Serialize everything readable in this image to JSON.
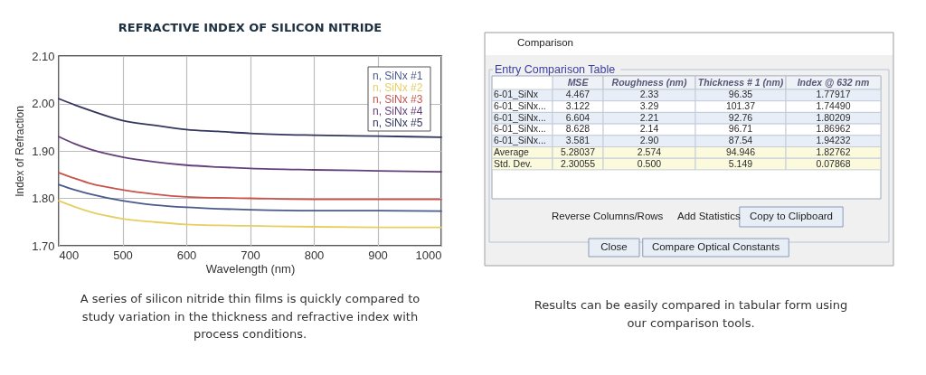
{
  "chart_data": [
    {
      "type": "line",
      "title": "REFRACTIVE INDEX OF SILICON NITRIDE",
      "xlabel": "Wavelength (nm)",
      "ylabel": "Index of Refraction",
      "x": [
        400,
        425,
        450,
        500,
        550,
        600,
        650,
        700,
        800,
        900,
        1000
      ],
      "series": [
        {
          "name": "n, SiNx #1",
          "color": "#4a5a8c",
          "values": [
            1.829,
            1.818,
            1.809,
            1.795,
            1.786,
            1.781,
            1.778,
            1.776,
            1.774,
            1.774,
            1.773
          ]
        },
        {
          "name": "n, SiNx #2",
          "color": "#e6cf62",
          "values": [
            1.795,
            1.782,
            1.771,
            1.757,
            1.75,
            1.745,
            1.743,
            1.742,
            1.74,
            1.739,
            1.739
          ]
        },
        {
          "name": "n, SiNx #3",
          "color": "#c8544c",
          "values": [
            1.854,
            1.842,
            1.831,
            1.818,
            1.809,
            1.803,
            1.801,
            1.8,
            1.798,
            1.798,
            1.798
          ]
        },
        {
          "name": "n, SiNx #4",
          "color": "#64407a",
          "values": [
            1.93,
            1.915,
            1.903,
            1.887,
            1.877,
            1.87,
            1.866,
            1.863,
            1.86,
            1.858,
            1.856
          ]
        },
        {
          "name": "n, SiNx #5",
          "color": "#33375e",
          "values": [
            2.01,
            1.997,
            1.985,
            1.964,
            1.954,
            1.945,
            1.941,
            1.937,
            1.933,
            1.931,
            1.929
          ]
        }
      ],
      "xlim": [
        400,
        1000
      ],
      "ylim": [
        1.7,
        2.1
      ],
      "xticks": [
        400,
        500,
        600,
        700,
        800,
        900,
        1000
      ],
      "yticks": [
        {
          "value": 1.7,
          "label": "1.70"
        },
        {
          "value": 1.8,
          "label": "1.80"
        },
        {
          "value": 1.9,
          "label": "1.90"
        },
        {
          "value": 2.0,
          "label": "2.00"
        },
        {
          "value": 2.1,
          "label": "2.10"
        }
      ],
      "grid": true,
      "legend": "top right",
      "annotations": [
        "A series of silicon nitride thin films is quickly compared to study variation in the thickness and refractive index with process conditions."
      ]
    },
    {
      "type": "heatmap",
      "title": "Comparison",
      "subtitle": "Entry Comparison Table",
      "categories": [
        "MSE",
        "Roughness (nm)",
        "Thickness # 1 (nm)",
        "Index @ 632 nm"
      ],
      "y_categories": [
        "6-01_SiNx",
        "6-01_SiNx...",
        "6-01_SiNx...",
        "6-01_SiNx...",
        "6-01_SiNx...",
        "Average",
        "Std. Dev."
      ],
      "cells": [
        [
          4.467,
          2.33,
          96.35,
          1.77917
        ],
        [
          3.122,
          3.29,
          101.37,
          1.7449
        ],
        [
          6.604,
          2.21,
          92.76,
          1.80209
        ],
        [
          8.628,
          2.14,
          96.71,
          1.86962
        ],
        [
          3.581,
          2.9,
          87.54,
          1.94232
        ],
        [
          5.28037,
          2.574,
          94.946,
          1.82762
        ],
        [
          2.30055,
          0.5,
          5.149,
          0.07868
        ]
      ],
      "cell_labels": [
        [
          "4.467",
          "2.33",
          "96.35",
          "1.77917"
        ],
        [
          "3.122",
          "3.29",
          "101.37",
          "1.74490"
        ],
        [
          "6.604",
          "2.21",
          "92.76",
          "1.80209"
        ],
        [
          "8.628",
          "2.14",
          "96.71",
          "1.86962"
        ],
        [
          "3.581",
          "2.90",
          "87.54",
          "1.94232"
        ],
        [
          "5.28037",
          "2.574",
          "94.946",
          "1.82762"
        ],
        [
          "2.30055",
          "0.500",
          "5.149",
          "0.07868"
        ]
      ],
      "colors": [
        "#e8eef8",
        "#ffffff",
        "#e8eef8",
        "#ffffff",
        "#e8eef8",
        "#fcfadc",
        "#fcfadc"
      ],
      "annotations": [
        "Reverse Columns/Rows",
        "Add Statistics",
        "Copy to Clipboard",
        "Close",
        "Compare Optical Constants",
        "Results can be easily compared in tabular form using our comparison tools."
      ]
    }
  ]
}
